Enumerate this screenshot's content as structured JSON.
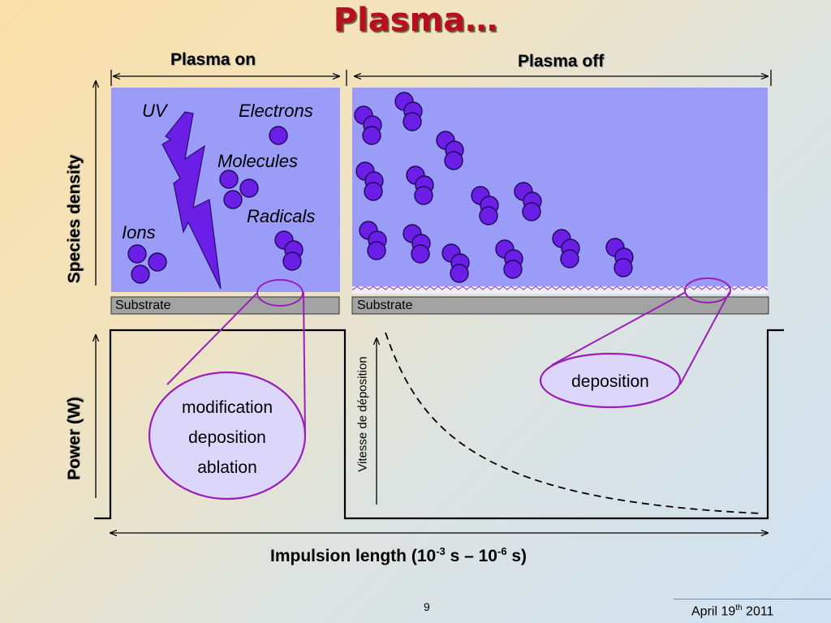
{
  "title": "Plasma…",
  "plasma_on_label": "Plasma on",
  "plasma_off_label": "Plasma off",
  "species_density_label": "Species density",
  "power_label": "Power (W)",
  "on_panel": {
    "uv": "UV",
    "electrons": "Electrons",
    "molecules": "Molecules",
    "radicals": "Radicals",
    "ions": "Ions",
    "substrate": "Substrate"
  },
  "off_panel": {
    "substrate": "Substrate"
  },
  "on_ellipse_lines": [
    "modification",
    "deposition",
    "ablation"
  ],
  "off_ellipse_text": "deposition",
  "vitesse_label": "Vitesse de déposition",
  "xaxis": {
    "prefix": "Impulsion length (10",
    "exp1": "-3",
    "mid": " s – 10",
    "exp2": "-6",
    "suffix": " s)"
  },
  "page_number": "9",
  "date": {
    "prefix": "April 19",
    "sup": "th",
    "suffix": " 2011"
  },
  "colors": {
    "panel": "#9a9cf7",
    "particle": "#6a1ee6",
    "ellipse_stroke": "#9a1fb8",
    "ellipse_fill": "#dcd6fb",
    "substrate": "#a3a3a3",
    "title": "#b80f1e"
  }
}
